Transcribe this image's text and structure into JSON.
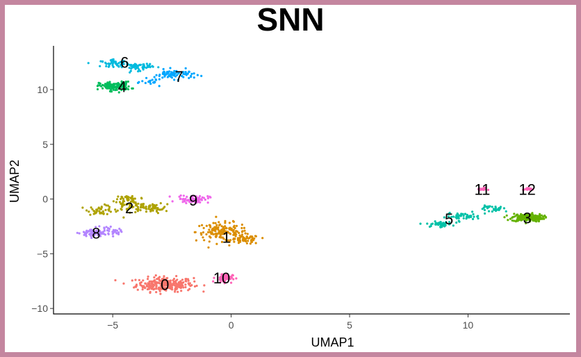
{
  "chart_data": {
    "type": "scatter",
    "title": "SNN",
    "xlabel": "UMAP1",
    "ylabel": "UMAP2",
    "xlim": [
      -7.5,
      14.3
    ],
    "ylim": [
      -10.5,
      14.0
    ],
    "xticks": [
      -5,
      0,
      5,
      10
    ],
    "yticks": [
      -10,
      -5,
      0,
      5,
      10
    ],
    "xtick_labels": [
      "−5",
      "0",
      "5",
      "10"
    ],
    "ytick_labels": [
      "−10",
      "−5",
      "0",
      "5",
      "10"
    ],
    "grid": false,
    "legend": false,
    "border_color": "#c4869f",
    "clusters": [
      {
        "label": "0",
        "color": "#F8766D",
        "center": [
          -2.8,
          -7.8
        ],
        "label_pos": [
          -2.8,
          -7.8
        ]
      },
      {
        "label": "1",
        "color": "#DB8E00",
        "center": [
          -0.3,
          -3.3
        ],
        "label_pos": [
          -0.2,
          -3.5
        ]
      },
      {
        "label": "2",
        "color": "#AEA200",
        "center": [
          -4.3,
          -0.8
        ],
        "label_pos": [
          -4.3,
          -0.8
        ]
      },
      {
        "label": "3",
        "color": "#64B200",
        "center": [
          12.5,
          -1.8
        ],
        "label_pos": [
          12.5,
          -1.7
        ]
      },
      {
        "label": "4",
        "color": "#00BD5C",
        "center": [
          -5.0,
          10.3
        ],
        "label_pos": [
          -4.6,
          10.3
        ]
      },
      {
        "label": "5",
        "color": "#00C1A7",
        "center": [
          8.8,
          -2.0
        ],
        "label_pos": [
          9.2,
          -1.8
        ]
      },
      {
        "label": "6",
        "color": "#00BADE",
        "center": [
          -4.5,
          12.2
        ],
        "label_pos": [
          -4.5,
          12.5
        ]
      },
      {
        "label": "7",
        "color": "#00A6FF",
        "center": [
          -2.3,
          11.3
        ],
        "label_pos": [
          -2.2,
          11.2
        ]
      },
      {
        "label": "8",
        "color": "#B385FF",
        "center": [
          -5.8,
          -3.0
        ],
        "label_pos": [
          -5.7,
          -3.1
        ]
      },
      {
        "label": "9",
        "color": "#EF67EB",
        "center": [
          -1.6,
          -0.1
        ],
        "label_pos": [
          -1.6,
          -0.1
        ]
      },
      {
        "label": "10",
        "color": "#FF63B6",
        "center": [
          -0.2,
          -7.2
        ],
        "label_pos": [
          -0.4,
          -7.2
        ]
      },
      {
        "label": "11",
        "color": "#FF63B6",
        "center": [
          10.6,
          0.9
        ],
        "label_pos": [
          10.6,
          0.9
        ]
      },
      {
        "label": "12",
        "color": "#FF63B6",
        "center": [
          12.5,
          0.9
        ],
        "label_pos": [
          12.5,
          0.9
        ]
      }
    ]
  }
}
